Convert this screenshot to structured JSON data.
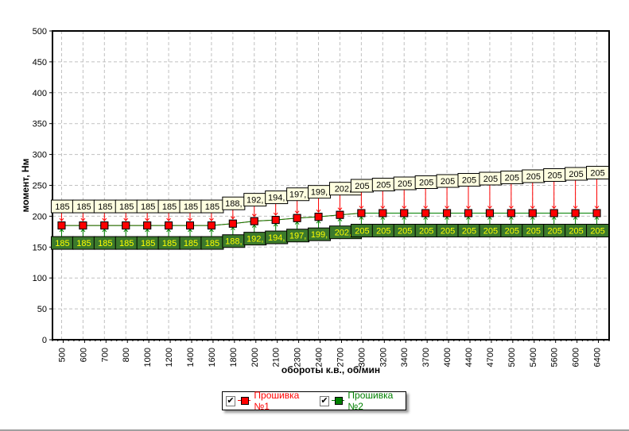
{
  "chart_data": {
    "type": "line",
    "title": "",
    "xlabel": "обороты к.в., об/мин",
    "ylabel": "момент, Нм",
    "ylim": [
      0,
      500
    ],
    "yticks": [
      0,
      50,
      100,
      150,
      200,
      250,
      300,
      350,
      400,
      450,
      500
    ],
    "grid": true,
    "legend_placement": "bottom-center",
    "categories": [
      "500",
      "600",
      "700",
      "800",
      "1000",
      "1200",
      "1400",
      "1600",
      "1800",
      "2000",
      "2100",
      "2300",
      "2400",
      "2700",
      "3000",
      "3200",
      "3400",
      "3700",
      "4000",
      "4400",
      "4700",
      "5000",
      "5400",
      "5600",
      "6000",
      "6400"
    ],
    "series": [
      {
        "name": "Прошивка №1",
        "color": "#ff0000",
        "label_bg": "#ffffe0",
        "label_color": "#000000",
        "values": [
          185,
          185,
          185,
          185,
          185,
          185,
          185,
          185,
          188,
          192,
          194,
          197,
          199,
          202.2,
          205,
          205,
          205,
          205,
          205,
          205,
          205,
          205,
          205,
          205,
          205,
          205
        ],
        "labels": [
          "185",
          "185",
          "185",
          "185",
          "185",
          "185",
          "185",
          "185",
          "188,",
          "192,",
          "194,",
          "197,",
          "199,",
          "202,2",
          "205",
          "205",
          "205",
          "205",
          "205",
          "205",
          "205",
          "205",
          "205",
          "205",
          "205",
          "205"
        ]
      },
      {
        "name": "Прошивка №2",
        "color": "#008000",
        "label_bg": "#3c7a2c",
        "label_color": "#ffff00",
        "values": [
          185,
          185,
          185,
          185,
          185,
          185,
          185,
          185,
          188,
          192,
          194,
          197,
          199,
          202.2,
          205,
          205,
          205,
          205,
          205,
          205,
          205,
          205,
          205,
          205,
          205,
          205
        ],
        "labels": [
          "185",
          "185",
          "185",
          "185",
          "185",
          "185",
          "185",
          "185",
          "188,",
          "192,",
          "194,",
          "197,",
          "199,",
          "202,2",
          "205",
          "205",
          "205",
          "205",
          "205",
          "205",
          "205",
          "205",
          "205",
          "205",
          "205",
          "205"
        ]
      }
    ]
  },
  "legend": {
    "check": "✔"
  }
}
